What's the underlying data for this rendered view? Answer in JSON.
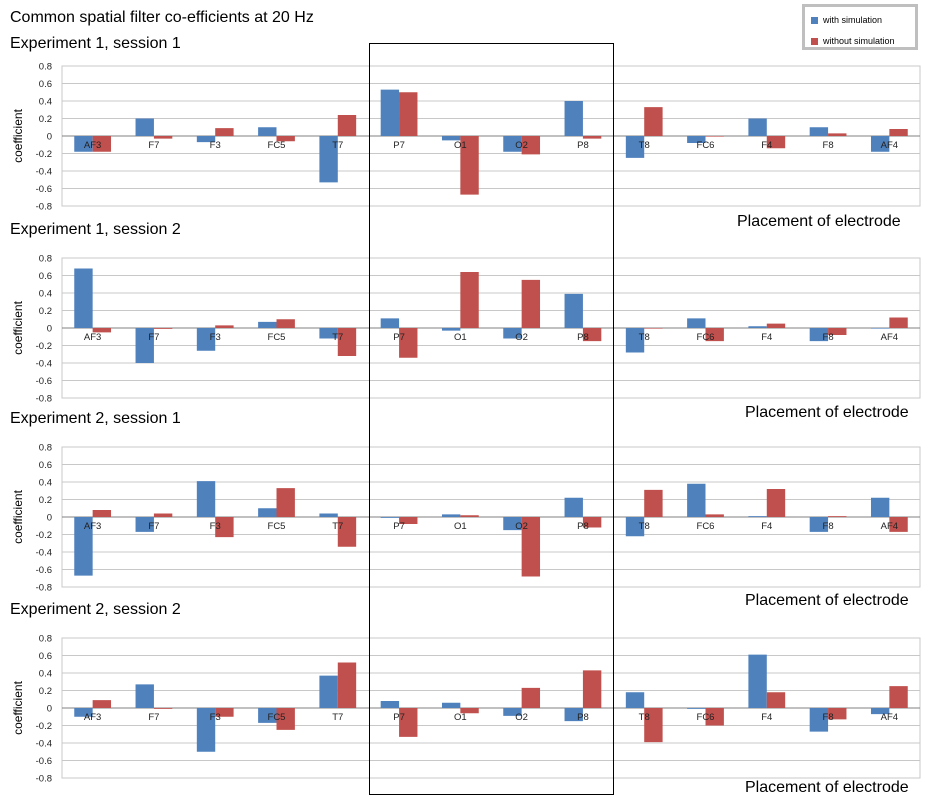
{
  "title": "Common spatial filter co-efficients at 20 Hz",
  "legend": [
    {
      "name": "with simulation",
      "color": "#4f81bd"
    },
    {
      "name": "without simulation",
      "color": "#c0504d"
    }
  ],
  "chart_data": [
    {
      "type": "bar",
      "title": "Experiment 1, session 1",
      "xlabel": "Placement of electrode",
      "ylabel": "coefficient",
      "ylim": [
        -0.8,
        0.8
      ],
      "yticks": [
        "0.8",
        "0.6",
        "0.4",
        "0.2",
        "0",
        "-0.2",
        "-0.4",
        "-0.6",
        "-0.8"
      ],
      "categories": [
        "AF3",
        "F7",
        "F3",
        "FC5",
        "T7",
        "P7",
        "O1",
        "O2",
        "P8",
        "T8",
        "FC6",
        "F4",
        "F8",
        "AF4"
      ],
      "series": [
        {
          "name": "with simulation",
          "values": [
            -0.18,
            0.2,
            -0.07,
            0.1,
            -0.53,
            0.53,
            -0.05,
            -0.18,
            0.4,
            -0.25,
            -0.08,
            0.2,
            0.1,
            -0.18
          ]
        },
        {
          "name": "without simulation",
          "values": [
            -0.18,
            -0.03,
            0.09,
            -0.06,
            0.24,
            0.5,
            -0.67,
            -0.21,
            -0.03,
            0.33,
            0.0,
            -0.14,
            0.03,
            0.08
          ]
        }
      ],
      "grid": true
    },
    {
      "type": "bar",
      "title": "Experiment 1, session 2",
      "xlabel": "Placement of electrode",
      "ylabel": "coefficient",
      "ylim": [
        -0.8,
        0.8
      ],
      "yticks": [
        "0.8",
        "0.6",
        "0.4",
        "0.2",
        "0",
        "-0.2",
        "-0.4",
        "-0.6",
        "-0.8"
      ],
      "categories": [
        "AF3",
        "F7",
        "F3",
        "FC5",
        "T7",
        "P7",
        "O1",
        "O2",
        "P8",
        "T8",
        "FC6",
        "F4",
        "F8",
        "AF4"
      ],
      "series": [
        {
          "name": "with simulation",
          "values": [
            0.68,
            -0.4,
            -0.26,
            0.07,
            -0.12,
            0.11,
            -0.03,
            -0.12,
            0.39,
            -0.28,
            0.11,
            0.02,
            -0.15,
            0.0
          ]
        },
        {
          "name": "without simulation",
          "values": [
            -0.05,
            -0.01,
            0.03,
            0.1,
            -0.32,
            -0.34,
            0.64,
            0.55,
            -0.15,
            0.0,
            -0.15,
            0.05,
            -0.08,
            0.12
          ]
        }
      ],
      "grid": true
    },
    {
      "type": "bar",
      "title": "Experiment 2, session 1",
      "xlabel": "Placement of electrode",
      "ylabel": "coefficient",
      "ylim": [
        -0.8,
        0.8
      ],
      "yticks": [
        "0.8",
        "0.6",
        "0.4",
        "0.2",
        "0",
        "-0.2",
        "-0.4",
        "-0.6",
        "-0.8"
      ],
      "categories": [
        "AF3",
        "F7",
        "F3",
        "FC5",
        "T7",
        "P7",
        "O1",
        "O2",
        "P8",
        "T8",
        "FC6",
        "F4",
        "F8",
        "AF4"
      ],
      "series": [
        {
          "name": "with simulation",
          "values": [
            -0.67,
            -0.17,
            0.41,
            0.1,
            0.04,
            -0.01,
            0.03,
            -0.15,
            0.22,
            -0.22,
            0.38,
            0.01,
            -0.17,
            0.22
          ]
        },
        {
          "name": "without simulation",
          "values": [
            0.08,
            0.04,
            -0.23,
            0.33,
            -0.34,
            -0.08,
            0.02,
            -0.68,
            -0.12,
            0.31,
            0.03,
            0.32,
            0.01,
            -0.17
          ]
        }
      ],
      "grid": true
    },
    {
      "type": "bar",
      "title": "Experiment 2, session 2",
      "xlabel": "Placement of electrode",
      "ylabel": "coefficient",
      "ylim": [
        -0.8,
        0.8
      ],
      "yticks": [
        "0.8",
        "0.6",
        "0.4",
        "0.2",
        "0",
        "-0.2",
        "-0.4",
        "-0.6",
        "-0.8"
      ],
      "categories": [
        "AF3",
        "F7",
        "F3",
        "FC5",
        "T7",
        "P7",
        "O1",
        "O2",
        "P8",
        "T8",
        "FC6",
        "F4",
        "F8",
        "AF4"
      ],
      "series": [
        {
          "name": "with simulation",
          "values": [
            -0.1,
            0.27,
            -0.5,
            -0.17,
            0.37,
            0.08,
            0.06,
            -0.09,
            -0.15,
            0.18,
            -0.01,
            0.61,
            -0.27,
            -0.07
          ]
        },
        {
          "name": "without simulation",
          "values": [
            0.09,
            -0.01,
            -0.1,
            -0.25,
            0.52,
            -0.33,
            -0.06,
            0.23,
            0.43,
            -0.39,
            -0.2,
            0.18,
            -0.13,
            0.25
          ]
        }
      ],
      "grid": true
    }
  ]
}
